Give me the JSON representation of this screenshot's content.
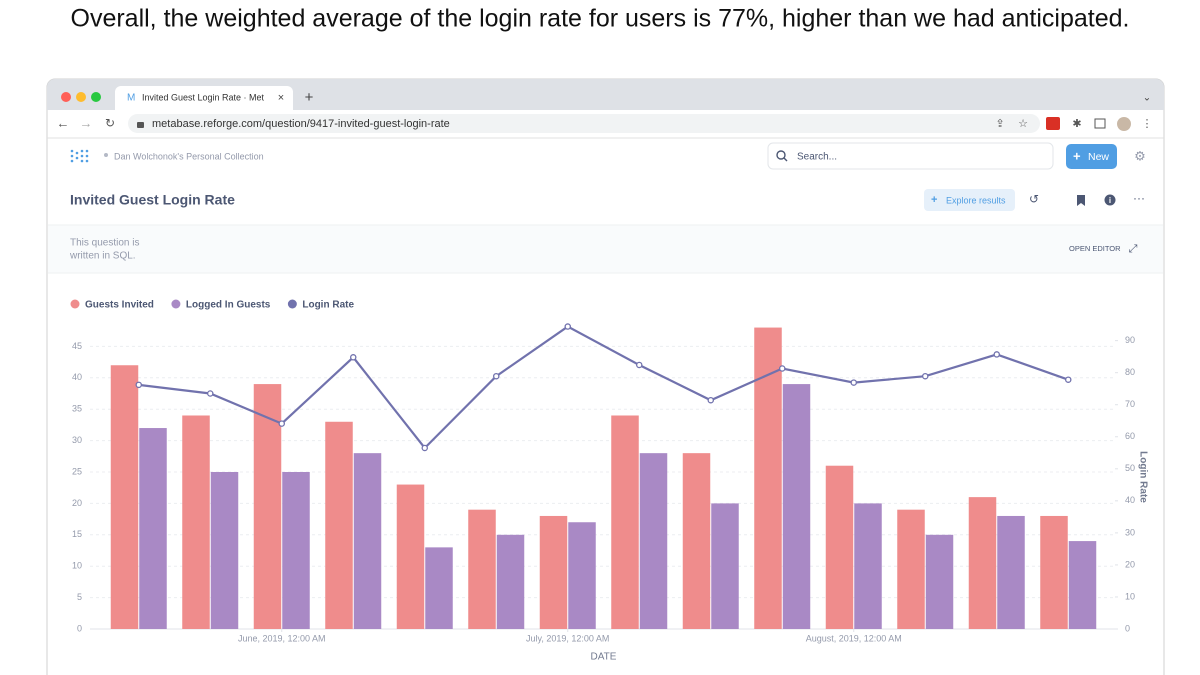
{
  "caption": "Overall, the weighted average of the login rate for users is 77%, higher than we had anticipated.",
  "browser": {
    "tab_title": "Invited Guest Login Rate · Met",
    "url": "metabase.reforge.com/question/9417-invited-guest-login-rate"
  },
  "app": {
    "breadcrumb": "Dan Wolchonok's Personal Collection",
    "search_placeholder": "Search...",
    "new_button": "New",
    "question_title": "Invited Guest Login Rate",
    "explore_button": "Explore results",
    "sql_note": [
      "This question is",
      "written in SQL."
    ],
    "open_editor": "OPEN EDITOR"
  },
  "chart_data": {
    "type": "bar",
    "xlabel": "DATE",
    "y2label": "Login Rate",
    "categories": [
      null,
      null,
      "June, 2019, 12:00 AM",
      null,
      null,
      null,
      "July, 2019, 12:00 AM",
      null,
      null,
      null,
      "August, 2019, 12:00 AM",
      null,
      null,
      null
    ],
    "series": [
      {
        "name": "Guests Invited",
        "color": "#ef8c8c",
        "values": [
          42,
          34,
          39,
          33,
          23,
          19,
          18,
          34,
          28,
          48,
          26,
          19,
          21,
          18
        ]
      },
      {
        "name": "Logged In Guests",
        "color": "#a989c5",
        "values": [
          32,
          25,
          25,
          28,
          13,
          15,
          17,
          28,
          20,
          39,
          20,
          15,
          18,
          14
        ]
      },
      {
        "name": "Login Rate",
        "color": "#7172ad",
        "type": "line",
        "axis": "y2",
        "values": [
          76.2,
          73.5,
          64.1,
          84.8,
          56.5,
          78.9,
          94.4,
          82.4,
          71.4,
          81.3,
          76.9,
          78.9,
          85.7,
          77.8
        ]
      }
    ],
    "ylim": [
      0,
      50
    ],
    "yticks": [
      0,
      5,
      10,
      15,
      20,
      25,
      30,
      35,
      40,
      45
    ],
    "y2lim": [
      0,
      98
    ],
    "y2ticks": [
      0,
      10,
      20,
      30,
      40,
      50,
      60,
      70,
      80,
      90
    ],
    "grid": true,
    "legend": "top-left"
  }
}
